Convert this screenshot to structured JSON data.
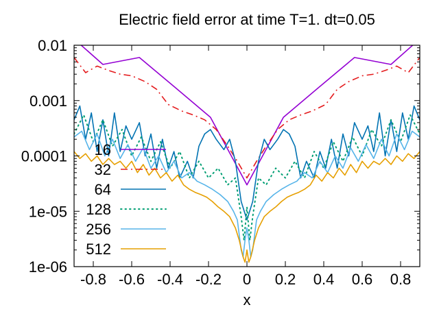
{
  "chart_data": {
    "type": "line",
    "title": "Electric field error at time T=1. dt=0.05",
    "xlabel": "x",
    "ylabel": "",
    "xlim": [
      -0.9,
      0.9
    ],
    "ylim": [
      1e-06,
      0.01
    ],
    "yscale": "log",
    "grid": false,
    "legend_position": "left",
    "x_ticks": [
      -0.8,
      -0.6,
      -0.4,
      -0.2,
      0,
      0.2,
      0.4,
      0.6,
      0.8
    ],
    "x_tick_labels": [
      "-0.8",
      "-0.6",
      "-0.4",
      "-0.2",
      "0",
      "0.2",
      "0.4",
      "0.6",
      "0.8"
    ],
    "y_ticks": [
      1e-06,
      1e-05,
      0.0001,
      0.001,
      0.01
    ],
    "y_tick_labels": [
      "1e-06",
      "1e-05",
      "0.0001",
      "0.001",
      "0.01"
    ],
    "series": [
      {
        "name": "16",
        "color": "#9400d3",
        "style": "solid",
        "x": [
          -0.9,
          -0.75,
          -0.56,
          -0.38,
          -0.19,
          0,
          0.19,
          0.38,
          0.56,
          0.75,
          0.9
        ],
        "y": [
          0.013,
          0.0045,
          0.006,
          0.0018,
          0.0005,
          3e-05,
          0.0005,
          0.0018,
          0.006,
          0.0045,
          0.013
        ]
      },
      {
        "name": "32",
        "color": "#e41a1c",
        "style": "dashdot",
        "x": [
          -0.9,
          -0.84,
          -0.78,
          -0.72,
          -0.66,
          -0.6,
          -0.53,
          -0.47,
          -0.41,
          -0.34,
          -0.28,
          -0.22,
          -0.16,
          -0.1,
          -0.05,
          0,
          0.05,
          0.1,
          0.16,
          0.22,
          0.28,
          0.34,
          0.41,
          0.47,
          0.53,
          0.6,
          0.66,
          0.72,
          0.78,
          0.84,
          0.9
        ],
        "y": [
          0.006,
          0.0032,
          0.0042,
          0.0035,
          0.003,
          0.0028,
          0.0022,
          0.0016,
          0.00085,
          0.00065,
          0.00055,
          0.00045,
          0.0003,
          0.00015,
          8e-05,
          4e-05,
          8e-05,
          0.00015,
          0.0003,
          0.00045,
          0.00055,
          0.00065,
          0.00085,
          0.0016,
          0.0022,
          0.0028,
          0.003,
          0.0035,
          0.0042,
          0.0032,
          0.006
        ]
      },
      {
        "name": "64",
        "color": "#0072b2",
        "style": "solid",
        "x": [
          -0.9,
          -0.87,
          -0.84,
          -0.81,
          -0.78,
          -0.75,
          -0.72,
          -0.69,
          -0.66,
          -0.63,
          -0.6,
          -0.56,
          -0.53,
          -0.5,
          -0.47,
          -0.44,
          -0.41,
          -0.38,
          -0.35,
          -0.31,
          -0.28,
          -0.25,
          -0.22,
          -0.19,
          -0.16,
          -0.12,
          -0.09,
          -0.06,
          -0.03,
          0,
          0.03,
          0.06,
          0.09,
          0.12,
          0.16,
          0.19,
          0.22,
          0.25,
          0.28,
          0.31,
          0.35,
          0.38,
          0.41,
          0.44,
          0.47,
          0.5,
          0.53,
          0.56,
          0.6,
          0.63,
          0.66,
          0.69,
          0.72,
          0.75,
          0.78,
          0.81,
          0.84,
          0.87,
          0.9
        ],
        "y": [
          0.00045,
          0.0008,
          0.0002,
          0.0006,
          0.00012,
          0.00045,
          0.0001,
          0.0006,
          0.00012,
          0.00035,
          0.0002,
          0.0004,
          0.0001,
          0.00025,
          6e-05,
          0.0002,
          6e-05,
          0.00012,
          4e-05,
          8e-05,
          4e-05,
          0.00015,
          0.00025,
          0.0003,
          0.0002,
          0.00013,
          0.0002,
          8e-05,
          1.5e-05,
          7e-06,
          1.5e-05,
          8e-05,
          0.0002,
          0.00013,
          0.0002,
          0.0003,
          0.00025,
          0.00015,
          4e-05,
          8e-05,
          4e-05,
          0.00012,
          6e-05,
          0.0002,
          6e-05,
          0.00025,
          0.0001,
          0.0004,
          0.0002,
          0.00035,
          0.00012,
          0.0006,
          0.0001,
          0.00045,
          0.00012,
          0.0006,
          0.0002,
          0.0008,
          0.00045
        ]
      },
      {
        "name": "128",
        "color": "#009e73",
        "style": "dotted",
        "x": [
          -0.9,
          -0.85,
          -0.8,
          -0.75,
          -0.7,
          -0.65,
          -0.6,
          -0.55,
          -0.5,
          -0.45,
          -0.4,
          -0.35,
          -0.3,
          -0.25,
          -0.2,
          -0.15,
          -0.1,
          -0.06,
          -0.03,
          -0.015,
          0,
          0.015,
          0.03,
          0.06,
          0.1,
          0.15,
          0.2,
          0.25,
          0.3,
          0.35,
          0.4,
          0.45,
          0.5,
          0.55,
          0.6,
          0.65,
          0.7,
          0.75,
          0.8,
          0.85,
          0.9
        ],
        "y": [
          0.00025,
          0.00055,
          0.00018,
          0.00045,
          0.00015,
          0.0003,
          0.0001,
          0.00022,
          8e-05,
          0.00018,
          6e-05,
          0.00012,
          4e-05,
          8e-05,
          4e-05,
          6e-05,
          3e-05,
          4e-05,
          8e-06,
          3e-06,
          1.2e-05,
          3e-06,
          8e-06,
          4e-05,
          3e-05,
          6e-05,
          4e-05,
          8e-05,
          4e-05,
          0.00012,
          6e-05,
          0.00018,
          8e-05,
          0.00022,
          0.0001,
          0.0003,
          0.00015,
          0.00045,
          0.00018,
          0.00055,
          0.00025
        ]
      },
      {
        "name": "256",
        "color": "#56b4e9",
        "style": "solid",
        "x": [
          -0.9,
          -0.86,
          -0.82,
          -0.78,
          -0.74,
          -0.7,
          -0.66,
          -0.62,
          -0.58,
          -0.54,
          -0.5,
          -0.46,
          -0.42,
          -0.38,
          -0.34,
          -0.3,
          -0.26,
          -0.22,
          -0.18,
          -0.14,
          -0.1,
          -0.07,
          -0.05,
          -0.03,
          -0.02,
          -0.01,
          0,
          0.01,
          0.02,
          0.03,
          0.05,
          0.07,
          0.1,
          0.14,
          0.18,
          0.22,
          0.26,
          0.3,
          0.34,
          0.38,
          0.42,
          0.46,
          0.5,
          0.54,
          0.58,
          0.62,
          0.66,
          0.7,
          0.74,
          0.78,
          0.82,
          0.86,
          0.9
        ],
        "y": [
          0.00022,
          0.00028,
          0.00013,
          0.00025,
          0.0001,
          0.0002,
          9e-05,
          0.00016,
          8e-05,
          0.00014,
          6e-05,
          0.0001,
          5e-05,
          8e-05,
          4e-05,
          5e-05,
          3.5e-05,
          3e-05,
          2.5e-05,
          2e-05,
          1.5e-05,
          1e-05,
          7e-06,
          2e-06,
          1.5e-06,
          3e-06,
          5e-06,
          3e-06,
          1.5e-06,
          2e-06,
          7e-06,
          1e-05,
          1.5e-05,
          2e-05,
          2.5e-05,
          3e-05,
          3.5e-05,
          5e-05,
          4e-05,
          8e-05,
          5e-05,
          0.0001,
          6e-05,
          0.00014,
          8e-05,
          0.00016,
          9e-05,
          0.0002,
          0.0001,
          0.00025,
          0.00013,
          0.00028,
          0.00022
        ]
      },
      {
        "name": "512",
        "color": "#e69f00",
        "style": "solid",
        "x": [
          -0.9,
          -0.87,
          -0.84,
          -0.81,
          -0.78,
          -0.75,
          -0.72,
          -0.69,
          -0.66,
          -0.63,
          -0.6,
          -0.57,
          -0.54,
          -0.51,
          -0.48,
          -0.45,
          -0.42,
          -0.39,
          -0.36,
          -0.33,
          -0.3,
          -0.27,
          -0.24,
          -0.21,
          -0.18,
          -0.15,
          -0.12,
          -0.09,
          -0.06,
          -0.04,
          -0.02,
          -0.01,
          0,
          0.01,
          0.02,
          0.04,
          0.06,
          0.09,
          0.12,
          0.15,
          0.18,
          0.21,
          0.24,
          0.27,
          0.3,
          0.33,
          0.36,
          0.39,
          0.42,
          0.45,
          0.48,
          0.51,
          0.54,
          0.57,
          0.6,
          0.63,
          0.66,
          0.69,
          0.72,
          0.75,
          0.78,
          0.81,
          0.84,
          0.87,
          0.9
        ],
        "y": [
          0.00012,
          9e-05,
          0.00011,
          8e-05,
          0.0001,
          7e-05,
          9e-05,
          7e-05,
          8e-05,
          6e-05,
          8e-05,
          5e-05,
          7e-05,
          4.5e-05,
          6e-05,
          4e-05,
          5e-05,
          3.5e-05,
          4.5e-05,
          3e-05,
          2.5e-05,
          2.2e-05,
          2e-05,
          1.8e-05,
          1.5e-05,
          1.2e-05,
          1e-05,
          8e-06,
          5e-06,
          3e-06,
          1.5e-06,
          1.2e-06,
          2e-06,
          1.2e-06,
          1.5e-06,
          3e-06,
          5e-06,
          8e-06,
          1e-05,
          1.2e-05,
          1.5e-05,
          1.8e-05,
          2e-05,
          2.2e-05,
          2.5e-05,
          3e-05,
          4.5e-05,
          3.5e-05,
          5e-05,
          4e-05,
          6e-05,
          4.5e-05,
          7e-05,
          5e-05,
          8e-05,
          6e-05,
          8e-05,
          7e-05,
          9e-05,
          7e-05,
          0.0001,
          8e-05,
          0.00011,
          9e-05,
          0.00012
        ]
      }
    ]
  }
}
